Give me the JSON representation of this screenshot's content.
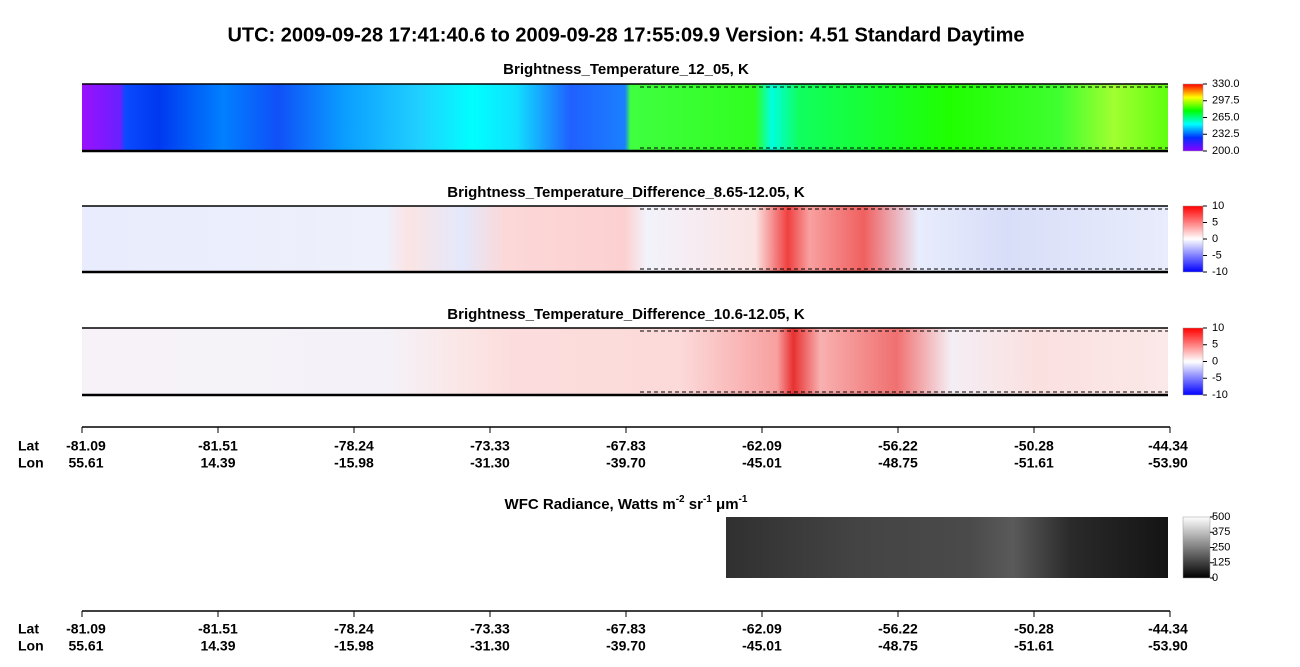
{
  "title": "UTC:  2009-09-28   17:41:40.6  to  2009-09-28   17:55:09.9    Version: 4.51  Standard Daytime",
  "x_axis": {
    "row_labels": [
      "Lat",
      "Lon"
    ],
    "lat": [
      "-81.09",
      "-81.51",
      "-78.24",
      "-73.33",
      "-67.83",
      "-62.09",
      "-56.22",
      "-50.28",
      "-44.34"
    ],
    "lon": [
      "55.61",
      "14.39",
      "-15.98",
      "-31.30",
      "-39.70",
      "-45.01",
      "-48.75",
      "-51.61",
      "-53.90"
    ]
  },
  "chart_data": [
    {
      "type": "heatmap",
      "title": "Brightness_Temperature_12_05, K",
      "colormap": "rainbow",
      "clim": [
        200,
        330
      ],
      "cticks": [
        {
          "value": 330,
          "label": "330.0"
        },
        {
          "value": 297.5,
          "label": "297.5"
        },
        {
          "value": 265,
          "label": "265.0"
        },
        {
          "value": 232.5,
          "label": "232.5"
        },
        {
          "value": 200,
          "label": "200.0"
        }
      ]
    },
    {
      "type": "heatmap",
      "title": "Brightness_Temperature_Difference_8.65-12.05, K",
      "colormap": "bwr",
      "clim": [
        -10,
        10
      ],
      "cticks": [
        10,
        5,
        0,
        -5,
        -10
      ]
    },
    {
      "type": "heatmap",
      "title": "Brightness_Temperature_Difference_10.6-12.05, K",
      "colormap": "bwr",
      "clim": [
        -10,
        10
      ],
      "cticks": [
        10,
        5,
        0,
        -5,
        -10
      ]
    },
    {
      "type": "heatmap",
      "colormap": "gray",
      "clim": [
        0,
        500
      ],
      "title_parts": [
        {
          "text": "WFC Radiance, Watts m"
        },
        {
          "text": "-2",
          "sup": true
        },
        {
          "text": " sr"
        },
        {
          "text": "-1",
          "sup": true
        },
        {
          "text": " μm"
        },
        {
          "text": "-1",
          "sup": true
        }
      ],
      "cticks": [
        500,
        375,
        250,
        125,
        0
      ]
    }
  ]
}
